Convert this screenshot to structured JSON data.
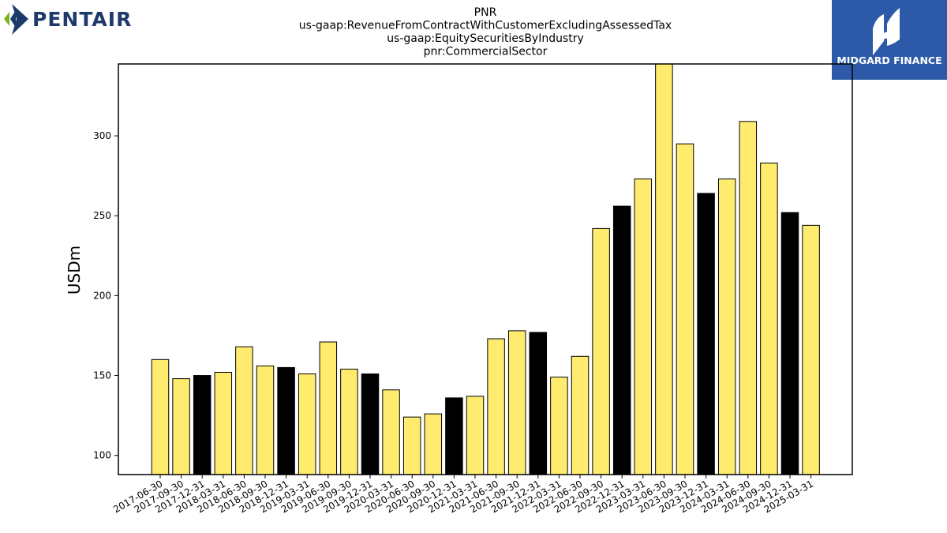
{
  "branding": {
    "company_logo_text": "PENTAIR",
    "partner_logo_text": "MIDGARD FINANCE",
    "colors": {
      "company_navy": "#1d3a6b",
      "company_green": "#7ab51d",
      "partner_blue": "#2c5aa8"
    }
  },
  "chart_data": {
    "type": "bar",
    "title_lines": [
      "PNR",
      "us-gaap:RevenueFromContractWithCustomerExcludingAssessedTax",
      "us-gaap:EquitySecuritiesByIndustry",
      "pnr:CommercialSector"
    ],
    "xlabel": "",
    "ylabel": "USDm",
    "ylim": [
      88,
      345
    ],
    "yticks": [
      100,
      150,
      200,
      250,
      300
    ],
    "grid": false,
    "legend": "none",
    "colors": {
      "default": "#ffec6e",
      "highlight": "#000000",
      "edge": "#000000"
    },
    "categories": [
      "2017-06-30",
      "2017-09-30",
      "2017-12-31",
      "2018-03-31",
      "2018-06-30",
      "2018-09-30",
      "2018-12-31",
      "2019-03-31",
      "2019-06-30",
      "2019-09-30",
      "2019-12-31",
      "2020-03-31",
      "2020-06-30",
      "2020-09-30",
      "2020-12-31",
      "2021-03-31",
      "2021-06-30",
      "2021-09-30",
      "2021-12-31",
      "2022-03-31",
      "2022-06-30",
      "2022-09-30",
      "2022-12-31",
      "2023-03-31",
      "2023-06-30",
      "2023-09-30",
      "2023-12-31",
      "2024-03-31",
      "2024-06-30",
      "2024-09-30",
      "2024-12-31",
      "2025-03-31"
    ],
    "values": [
      160,
      148,
      150,
      152,
      168,
      156,
      155,
      151,
      171,
      154,
      151,
      141,
      124,
      126,
      136,
      137,
      173,
      178,
      177,
      149,
      162,
      242,
      256,
      273,
      345,
      295,
      264,
      273,
      309,
      283,
      252,
      244
    ],
    "highlight": [
      false,
      false,
      true,
      false,
      false,
      false,
      true,
      false,
      false,
      false,
      true,
      false,
      false,
      false,
      true,
      false,
      false,
      false,
      true,
      false,
      false,
      false,
      true,
      false,
      false,
      false,
      true,
      false,
      false,
      false,
      true,
      false
    ]
  }
}
